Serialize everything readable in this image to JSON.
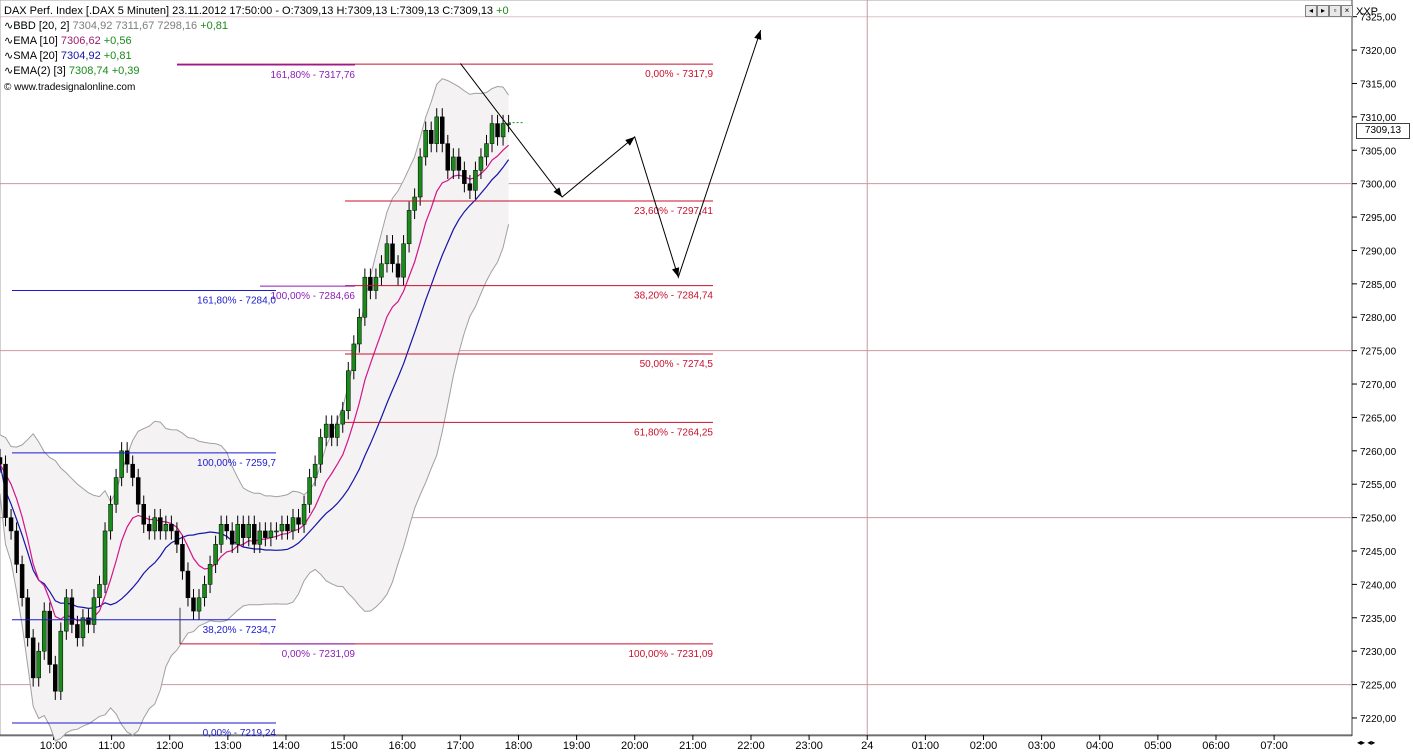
{
  "header": {
    "instrument": "DAX Perf. Index [.DAX  5 Minuten]",
    "datetime": "23.11.2012 17:50:00",
    "ohlc": "O:7309,13 H:7309,13 L:7309,13 C:7309,13",
    "change": "+0",
    "indicators": [
      {
        "name": "BBD [20, 2]",
        "values": "7304,92 7311,67 7298,16",
        "change": "+0,81"
      },
      {
        "name": "EMA [10]",
        "values": "7306,62",
        "change": "+0,56"
      },
      {
        "name": "SMA [20]",
        "values": "7304,92",
        "change": "+0,81"
      },
      {
        "name": "EMA(2) [3]",
        "values": "7308,74",
        "change": "+0,39"
      }
    ],
    "copyright": "© www.tradesignalonline.com"
  },
  "axis": {
    "title": "XXP",
    "last_price": "7309,13"
  },
  "chart_data": {
    "type": "candlestick",
    "y_ticks": [
      "7220,00",
      "7225,00",
      "7230,00",
      "7235,00",
      "7240,00",
      "7245,00",
      "7250,00",
      "7255,00",
      "7260,00",
      "7265,00",
      "7270,00",
      "7275,00",
      "7280,00",
      "7285,00",
      "7290,00",
      "7295,00",
      "7300,00",
      "7305,00",
      "7310,00",
      "7315,00",
      "7320,00",
      "7325,00"
    ],
    "ylim": [
      7217.6,
      7327.2
    ],
    "x_ticks": [
      "10:00",
      "11:00",
      "12:00",
      "13:00",
      "14:00",
      "15:00",
      "16:00",
      "17:00",
      "18:00",
      "19:00",
      "20:00",
      "21:00",
      "22:00",
      "23:00",
      "24",
      "01:00",
      "02:00",
      "03:00",
      "04:00",
      "05:00",
      "06:00",
      "07:00"
    ],
    "x_tick_hours": [
      10,
      11,
      12,
      13,
      14,
      15,
      16,
      17,
      18,
      19,
      20,
      21,
      22,
      23,
      24,
      25,
      26,
      27,
      28,
      29,
      30,
      31
    ],
    "time_range_hours": [
      9.08,
      32.34
    ],
    "reference_lines": [
      7300,
      7275,
      7250,
      7225
    ],
    "candles_close": [
      7258,
      7250,
      7248,
      7243,
      7238,
      7232,
      7226,
      7230,
      7236,
      7228,
      7224,
      7233,
      7238,
      7234,
      7232,
      7235,
      7234,
      7238,
      7240,
      7248,
      7252,
      7256,
      7260,
      7258,
      7256,
      7252,
      7249,
      7248,
      7250,
      7248,
      7249,
      7248,
      7246,
      7242,
      7238,
      7236,
      7238,
      7240,
      7243,
      7246,
      7249,
      7248,
      7246,
      7249,
      7247,
      7249,
      7246,
      7248,
      7247,
      7248,
      7248,
      7249,
      7248,
      7250,
      7249,
      7252,
      7256,
      7258,
      7262,
      7264,
      7262,
      7264,
      7266,
      7272,
      7276,
      7280,
      7286,
      7284,
      7286,
      7288,
      7291,
      7288,
      7286,
      7291,
      7296,
      7298,
      7304,
      7308,
      7306,
      7310,
      7306,
      7302,
      7304,
      7302,
      7300,
      7299,
      7302,
      7304,
      7306,
      7309,
      7307,
      7309,
      7309
    ],
    "ema10_end": 7306.62,
    "sma20_end": 7304.92,
    "bollinger_end": {
      "middle": 7304.92,
      "upper": 7311.67,
      "lower": 7298.16
    },
    "fibonacci_sets": [
      {
        "color": "#c8102e",
        "levels": [
          {
            "label": "0,00% - 7317,9",
            "value": 7317.9
          },
          {
            "label": "23,60% - 7297,41",
            "value": 7297.41
          },
          {
            "label": "38,20% - 7284,74",
            "value": 7284.74
          },
          {
            "label": "50,00% - 7274,5",
            "value": 7274.5
          },
          {
            "label": "61,80% - 7264,25",
            "value": 7264.25
          },
          {
            "label": "100,00% - 7231,09",
            "value": 7231.09
          }
        ]
      },
      {
        "color": "#8b1db8",
        "levels": [
          {
            "label": "161,80% - 7317,76",
            "value": 7317.76
          },
          {
            "label": "100,00% - 7284,66",
            "value": 7284.66
          },
          {
            "label": "0,00% - 7231,09",
            "value": 7231.09
          }
        ]
      },
      {
        "color": "#1a1ad0",
        "levels": [
          {
            "label": "161,80% - 7284,0",
            "value": 7284.0
          },
          {
            "label": "100,00% - 7259,7",
            "value": 7259.7
          },
          {
            "label": "38,20% - 7234,7",
            "value": 7234.7
          },
          {
            "label": "0,00% - 7219,24",
            "value": 7219.24
          }
        ]
      }
    ],
    "forecast_path": [
      {
        "time": "17:00",
        "value": 7318
      },
      {
        "time": "18:45",
        "value": 7298
      },
      {
        "time": "20:00",
        "value": 7307
      },
      {
        "time": "20:45",
        "value": 7286
      },
      {
        "time": "22:10",
        "value": 7323
      }
    ]
  },
  "colors": {
    "grid": "#c89aa0",
    "bollinger": "#a0a0a0",
    "ema": "#d4148c",
    "sma": "#1414a8",
    "candle_up": "#1a8a1a",
    "candle_down": "#000000"
  }
}
